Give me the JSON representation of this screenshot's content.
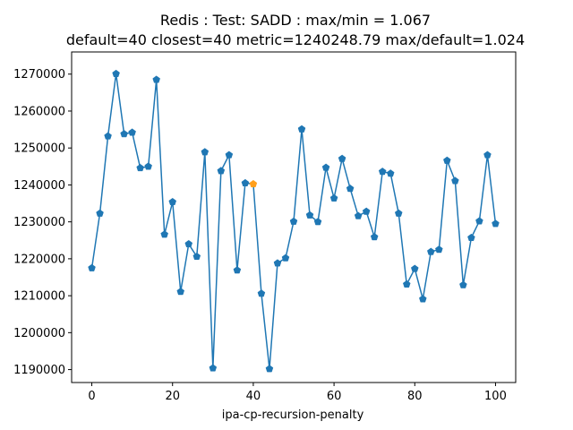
{
  "chart_data": {
    "type": "line",
    "title": "Redis : Test: SADD : max/min = 1.067",
    "subtitle": "default=40 closest=40 metric=1240248.79 max/default=1.024",
    "xlabel": "ipa-cp-recursion-penalty",
    "ylabel": "",
    "xlim": [
      -5,
      105
    ],
    "ylim": [
      1186500,
      1276000
    ],
    "xticks": [
      0,
      20,
      40,
      60,
      80,
      100
    ],
    "xtick_labels": [
      "0",
      "20",
      "40",
      "60",
      "80",
      "100"
    ],
    "yticks": [
      1190000,
      1200000,
      1210000,
      1220000,
      1230000,
      1240000,
      1250000,
      1260000,
      1270000
    ],
    "ytick_labels": [
      "1190000",
      "1200000",
      "1210000",
      "1220000",
      "1230000",
      "1240000",
      "1250000",
      "1260000",
      "1270000"
    ],
    "grid": false,
    "series": [
      {
        "color": "#1f77b4",
        "marker": "pentagon",
        "x": [
          0,
          2,
          4,
          6,
          8,
          10,
          12,
          14,
          16,
          18,
          20,
          22,
          24,
          26,
          28,
          30,
          32,
          34,
          36,
          38,
          40,
          42,
          44,
          46,
          48,
          50,
          52,
          54,
          56,
          58,
          60,
          62,
          64,
          66,
          68,
          70,
          72,
          74,
          76,
          78,
          80,
          82,
          84,
          86,
          88,
          90,
          92,
          94,
          96,
          98,
          100
        ],
        "y": [
          1217500,
          1232300,
          1253200,
          1270100,
          1253800,
          1254200,
          1244600,
          1245000,
          1268500,
          1226600,
          1235400,
          1211100,
          1224000,
          1220600,
          1248900,
          1190400,
          1243800,
          1248100,
          1216900,
          1240500,
          1240249,
          1210600,
          1190200,
          1218800,
          1220200,
          1230100,
          1255100,
          1231800,
          1230000,
          1244700,
          1236400,
          1247100,
          1239000,
          1231600,
          1232800,
          1225900,
          1243600,
          1243100,
          1232300,
          1213100,
          1217300,
          1209100,
          1221900,
          1222500,
          1246600,
          1241100,
          1212900,
          1225700,
          1230200,
          1248100,
          1229500
        ]
      }
    ],
    "highlight": {
      "x": 40,
      "y": 1240249,
      "color": "#ff9f1c"
    }
  }
}
